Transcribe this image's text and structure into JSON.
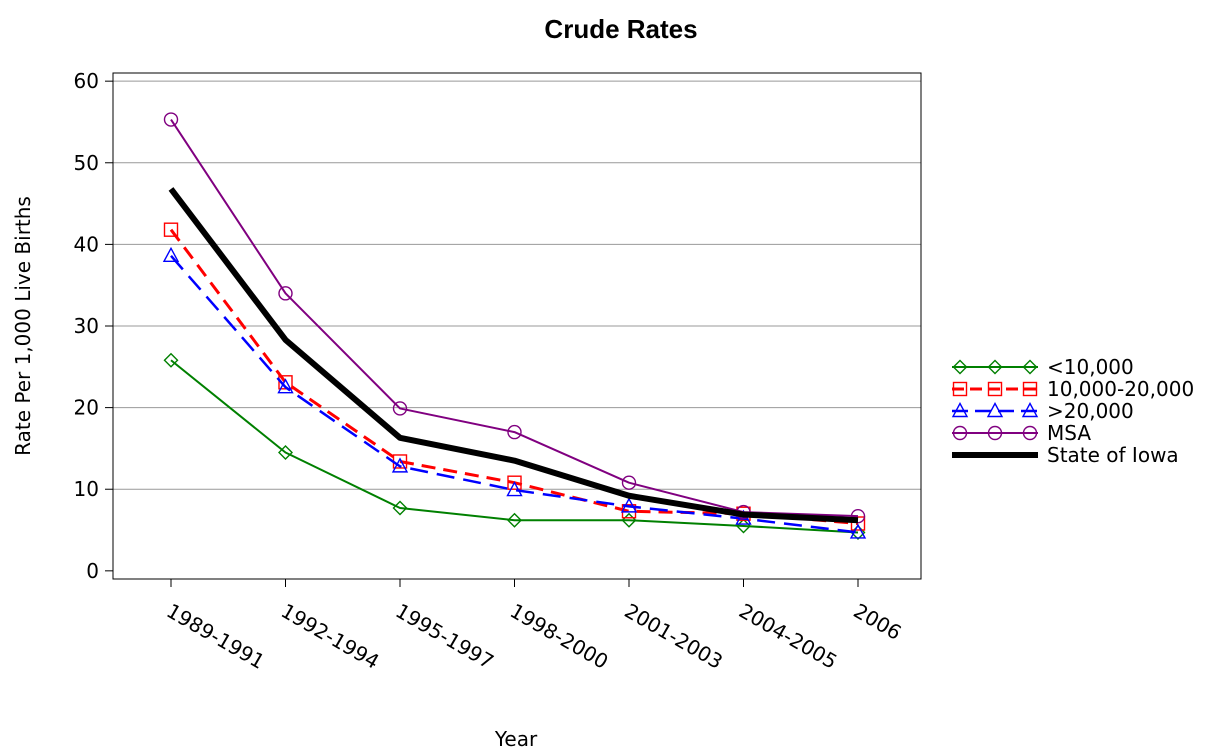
{
  "chart_data": {
    "type": "line",
    "title": "Crude Rates",
    "xlabel": "Year",
    "ylabel": "Rate Per 1,000 Live Births",
    "categories": [
      "1989-1991",
      "1992-1994",
      "1995-1997",
      "1998-2000",
      "2001-2003",
      "2004-2005",
      "2006"
    ],
    "yticks": [
      0,
      10,
      20,
      30,
      40,
      50,
      60
    ],
    "ylim": [
      -1,
      61
    ],
    "grid": true,
    "legend_position": "right",
    "series": [
      {
        "name": "<10,000",
        "color": "#008000",
        "marker": "diamond",
        "dash": "solid",
        "width": 2,
        "values": [
          25.8,
          14.5,
          7.7,
          6.2,
          6.2,
          5.5,
          4.7
        ]
      },
      {
        "name": "10,000-20,000",
        "color": "#ff0000",
        "marker": "square",
        "dash": "dashed",
        "width": 3,
        "values": [
          41.8,
          23.1,
          13.4,
          10.8,
          7.3,
          7.0,
          5.8
        ]
      },
      {
        "name": ">20,000",
        "color": "#0000ff",
        "marker": "triangle",
        "dash": "longdash",
        "width": 2.5,
        "values": [
          38.6,
          22.5,
          12.8,
          9.9,
          7.9,
          6.4,
          4.7
        ]
      },
      {
        "name": "MSA",
        "color": "#800080",
        "marker": "circle",
        "dash": "solid",
        "width": 2,
        "values": [
          55.3,
          34.0,
          19.9,
          17.0,
          10.8,
          7.2,
          6.7
        ]
      },
      {
        "name": "State of Iowa",
        "color": "#000000",
        "marker": "none",
        "dash": "solid",
        "width": 6,
        "values": [
          46.8,
          28.3,
          16.3,
          13.5,
          9.2,
          6.9,
          6.2
        ]
      }
    ]
  }
}
